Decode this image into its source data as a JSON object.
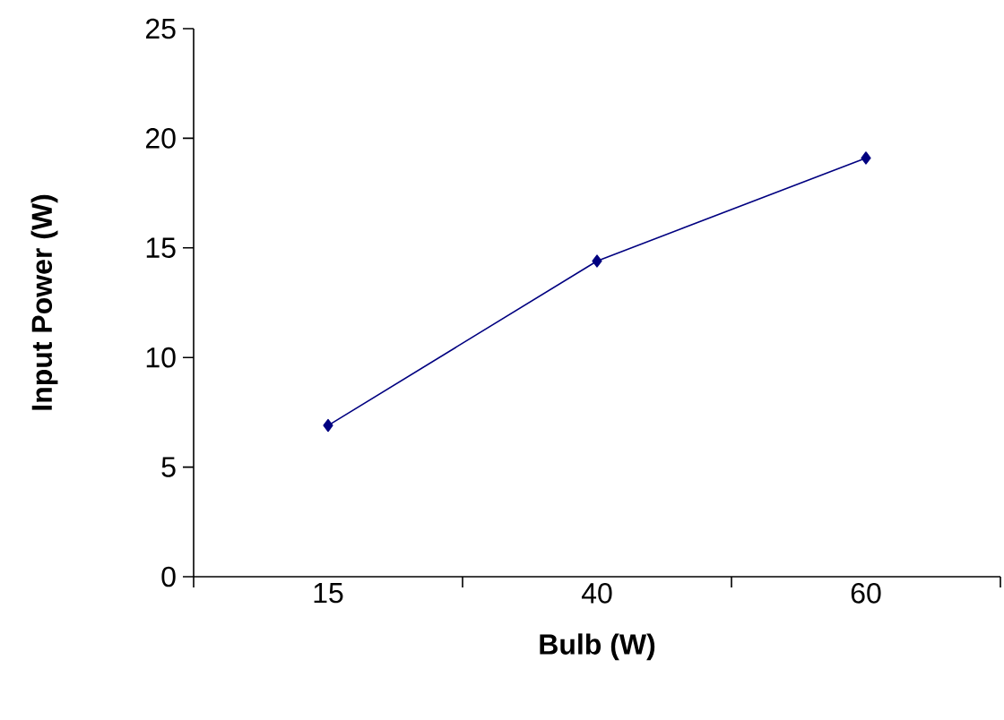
{
  "chart_data": {
    "type": "line",
    "xlabel": "Bulb (W)",
    "ylabel": "Input Power (W)",
    "categories": [
      "15",
      "40",
      "60"
    ],
    "series": [
      {
        "color": "#000080",
        "values": [
          6.9,
          14.4,
          19.1
        ]
      }
    ],
    "ylim": [
      0,
      25
    ],
    "yticks": [
      0,
      5,
      10,
      15,
      20,
      25
    ],
    "marker": "diamond",
    "line_style": "solid"
  }
}
